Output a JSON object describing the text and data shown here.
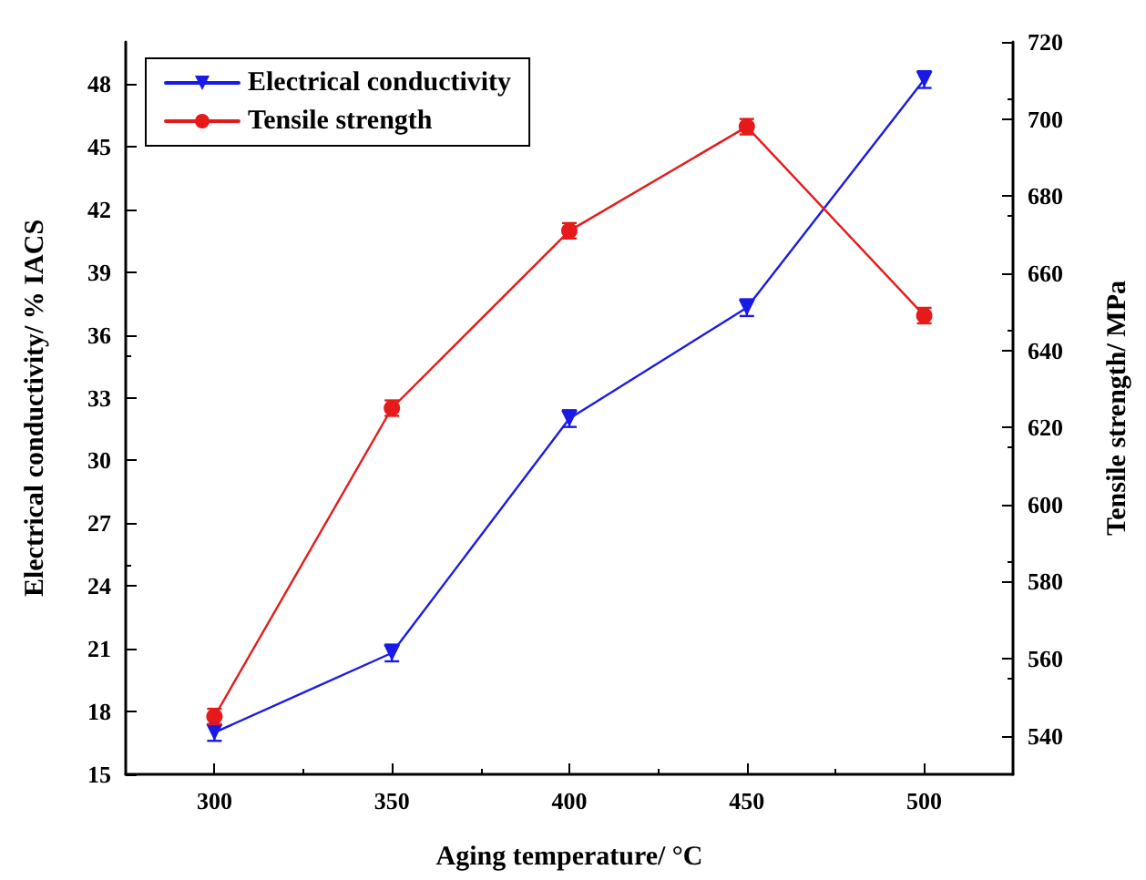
{
  "chart_data": {
    "type": "line",
    "xlabel": "Aging temperature/ °C",
    "ylabel": "Electrical conductivity/ % IACS",
    "y2label": "Tensile strength/ MPa",
    "x": [
      300,
      350,
      400,
      450,
      500
    ],
    "series": [
      {
        "name": "Electrical conductivity",
        "color": "#1a1ae6",
        "marker": "triangle-down",
        "values": [
          17.0,
          20.8,
          32.0,
          37.3,
          48.2
        ],
        "errors": [
          0.4,
          0.4,
          0.4,
          0.4,
          0.4
        ]
      },
      {
        "name": "Tensile strength",
        "color": "#e61a1a",
        "marker": "circle",
        "axis": "y2",
        "values": [
          545,
          625,
          671,
          698,
          649
        ],
        "errors": [
          2,
          2,
          2,
          2,
          2
        ]
      }
    ],
    "xlim": [
      275,
      525
    ],
    "xticks": [
      300,
      350,
      400,
      450,
      500
    ],
    "ylim": [
      15,
      50
    ],
    "yticks": [
      15,
      18,
      21,
      24,
      27,
      30,
      33,
      36,
      39,
      42,
      45,
      48
    ],
    "y2lim": [
      530,
      720
    ],
    "y2ticks": [
      540,
      560,
      580,
      600,
      620,
      640,
      660,
      680,
      700,
      720
    ],
    "legend": "top left",
    "grid": false
  }
}
